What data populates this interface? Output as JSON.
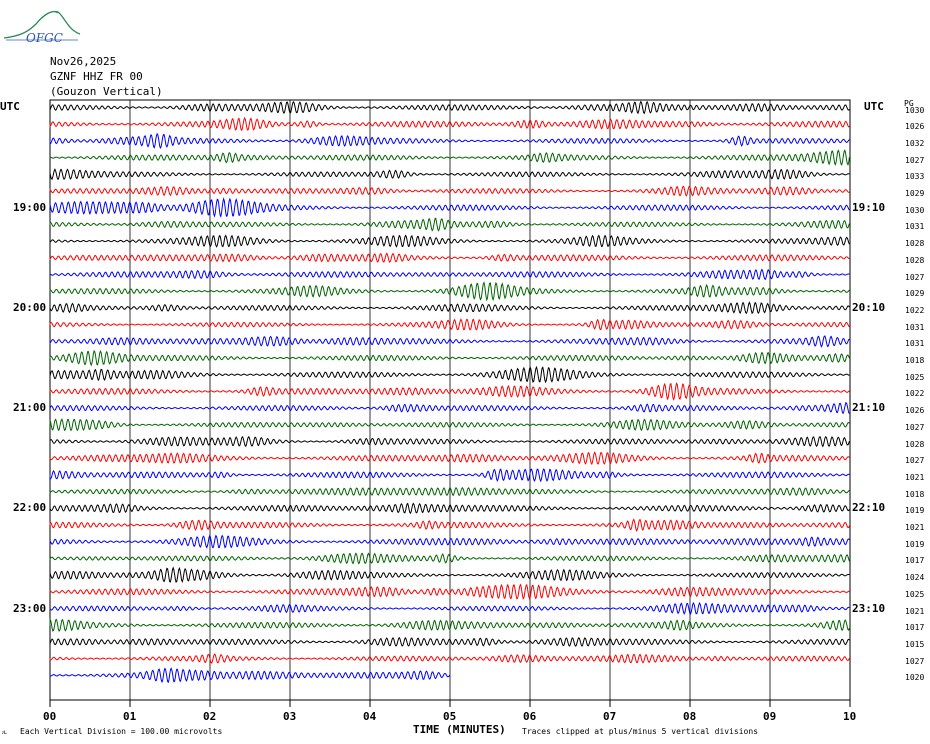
{
  "logo": {
    "text": "OFGC"
  },
  "header": {
    "date": "Nov26,2025",
    "station": "GZNF HHZ FR 00",
    "location": "(Gouzon Vertical)"
  },
  "labels": {
    "utc_left": "UTC",
    "utc_right": "UTC",
    "rms_header": "PG"
  },
  "footer": {
    "division": "Each Vertical Division =  100.00 microvolts",
    "xlabel": "TIME (MINUTES)",
    "clip_note": "Traces clipped at plus/minus 5 vertical divisions",
    "corner_mark": "ᴊʟ"
  },
  "colors": {
    "trace_cycle": [
      "#000000",
      "#ff0000",
      "#0000ff",
      "#006400"
    ]
  },
  "chart_data": {
    "type": "line",
    "title": "GZNF HHZ FR 00 (Gouzon Vertical)",
    "xlabel": "TIME (MINUTES)",
    "x_ticks": [
      "00",
      "01",
      "02",
      "03",
      "04",
      "05",
      "06",
      "07",
      "08",
      "09",
      "10"
    ],
    "xlim": [
      0,
      10
    ],
    "rows_per_hour": 6,
    "trace_minutes": 10,
    "last_trace_end_minute": 5,
    "left_time_labels": [
      {
        "row": 6,
        "text": "19:00"
      },
      {
        "row": 12,
        "text": "20:00"
      },
      {
        "row": 18,
        "text": "21:00"
      },
      {
        "row": 24,
        "text": "22:00"
      },
      {
        "row": 30,
        "text": "23:00"
      }
    ],
    "right_time_labels": [
      {
        "row": 6,
        "text": "19:10"
      },
      {
        "row": 12,
        "text": "20:10"
      },
      {
        "row": 18,
        "text": "21:10"
      },
      {
        "row": 24,
        "text": "22:10"
      },
      {
        "row": 30,
        "text": "23:10"
      }
    ],
    "rms_values": [
      "1030",
      "1026",
      "1032",
      "1027",
      "1033",
      "1029",
      "1030",
      "1031",
      "1028",
      "1028",
      "1027",
      "1029",
      "1022",
      "1031",
      "1031",
      "1018",
      "1025",
      "1022",
      "1026",
      "1027",
      "1028",
      "1027",
      "1021",
      "1018",
      "1019",
      "1021",
      "1019",
      "1017",
      "1024",
      "1025",
      "1021",
      "1017",
      "1015",
      "1027",
      "1020"
    ]
  }
}
